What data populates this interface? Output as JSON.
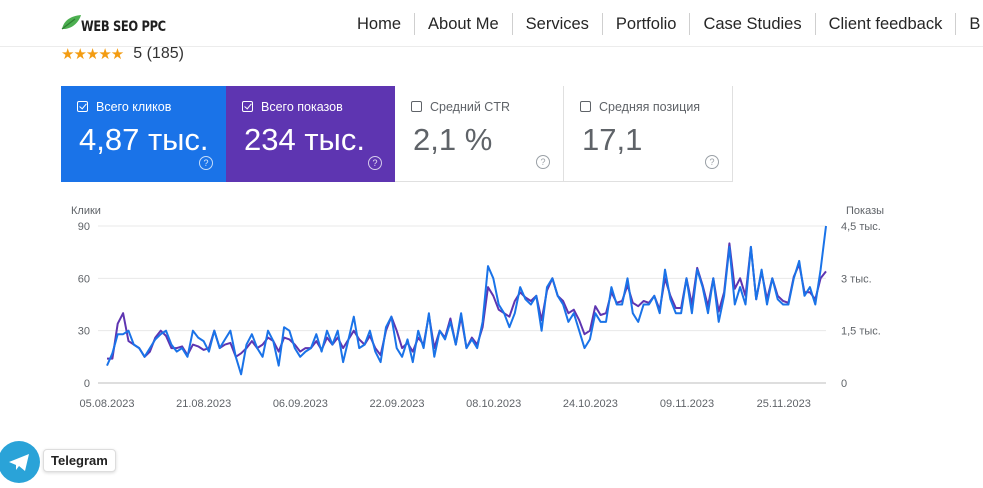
{
  "header": {
    "logo_text": "WEB SEO PPC",
    "nav": [
      "Home",
      "About Me",
      "Services",
      "Portfolio",
      "Case Studies",
      "Client feedback",
      "B"
    ]
  },
  "rating": {
    "stars": "★★★★★",
    "text": "5 (185)"
  },
  "metrics": [
    {
      "label": "Всего кликов",
      "value": "4,87 тыс.",
      "checked": true,
      "color": "#1a73e8"
    },
    {
      "label": "Всего показов",
      "value": "234 тыс.",
      "checked": true,
      "color": "#5e35b1"
    },
    {
      "label": "Средний CTR",
      "value": "2,1 %",
      "checked": false
    },
    {
      "label": "Средняя позиция",
      "value": "17,1",
      "checked": false
    }
  ],
  "help_glyph": "?",
  "telegram": {
    "label": "Telegram"
  },
  "colors": {
    "clicks": "#1a73e8",
    "impressions": "#5e35b1",
    "stars": "#f39c12",
    "logo_leaf": "#4caf50",
    "telegram": "#2aa3d8"
  },
  "chart_data": {
    "type": "line",
    "left_axis_title": "Клики",
    "right_axis_title": "Показы",
    "left_ticks": [
      "90",
      "60",
      "30",
      "0"
    ],
    "right_ticks": [
      "4,5 тыс.",
      "3 тыс.",
      "1,5 тыс.",
      "0"
    ],
    "x_ticks": [
      "05.08.2023",
      "21.08.2023",
      "06.09.2023",
      "22.09.2023",
      "08.10.2023",
      "24.10.2023",
      "09.11.2023",
      "25.11.2023"
    ],
    "x_range": [
      "2023-08-05",
      "2023-12-02"
    ],
    "y_left_range": [
      0,
      90
    ],
    "y_right_range": [
      0,
      4500
    ],
    "grid": true,
    "series": [
      {
        "name": "Клики",
        "axis": "left",
        "color": "#1a73e8",
        "values": [
          10,
          17,
          28,
          28,
          30,
          22,
          20,
          15,
          20,
          25,
          28,
          30,
          22,
          18,
          20,
          15,
          30,
          26,
          24,
          18,
          30,
          20,
          25,
          30,
          15,
          5,
          22,
          28,
          20,
          15,
          30,
          24,
          10,
          32,
          30,
          20,
          15,
          18,
          20,
          28,
          18,
          30,
          22,
          30,
          12,
          25,
          38,
          20,
          22,
          30,
          18,
          12,
          32,
          38,
          20,
          15,
          25,
          12,
          30,
          20,
          40,
          15,
          30,
          25,
          35,
          22,
          40,
          20,
          25,
          20,
          35,
          67,
          60,
          45,
          40,
          32,
          40,
          55,
          48,
          45,
          50,
          30,
          55,
          60,
          50,
          45,
          35,
          40,
          30,
          20,
          25,
          40,
          35,
          35,
          55,
          45,
          45,
          60,
          40,
          35,
          45,
          45,
          50,
          40,
          65,
          48,
          40,
          40,
          60,
          40,
          65,
          55,
          40,
          60,
          35,
          50,
          78,
          45,
          55,
          45,
          78,
          48,
          65,
          45,
          60,
          48,
          45,
          45,
          60,
          70,
          50,
          55,
          45,
          65,
          90
        ]
      },
      {
        "name": "Показы",
        "axis": "right",
        "color": "#5e35b1",
        "values": [
          700,
          700,
          1700,
          2000,
          1200,
          1100,
          1000,
          750,
          900,
          1300,
          1500,
          1350,
          1000,
          1000,
          1050,
          800,
          1100,
          1050,
          950,
          1000,
          1500,
          1000,
          1100,
          1150,
          750,
          850,
          1000,
          1200,
          1000,
          1100,
          1300,
          1200,
          900,
          1300,
          1250,
          1100,
          900,
          1000,
          1000,
          1200,
          950,
          1300,
          1100,
          1300,
          1000,
          1250,
          1500,
          1250,
          1100,
          1350,
          1000,
          800,
          1500,
          1900,
          1500,
          1000,
          1150,
          900,
          1300,
          1100,
          1950,
          1000,
          1500,
          1300,
          1850,
          1100,
          1900,
          1000,
          1300,
          1100,
          1600,
          2750,
          2500,
          2100,
          2000,
          1900,
          2350,
          2600,
          2450,
          2350,
          2500,
          1800,
          2650,
          3000,
          2500,
          2350,
          2000,
          2100,
          1800,
          1400,
          1500,
          2200,
          1950,
          2000,
          2600,
          2300,
          2350,
          2800,
          2300,
          2200,
          2350,
          2300,
          2500,
          2100,
          3000,
          2500,
          2150,
          2150,
          3000,
          2250,
          3300,
          2800,
          2200,
          3000,
          2050,
          2600,
          4000,
          2700,
          3000,
          2500,
          3900,
          2400,
          3200,
          2400,
          3000,
          2500,
          2350,
          2300,
          3050,
          3400,
          2600,
          2600,
          2400,
          3000,
          3200
        ]
      }
    ]
  }
}
